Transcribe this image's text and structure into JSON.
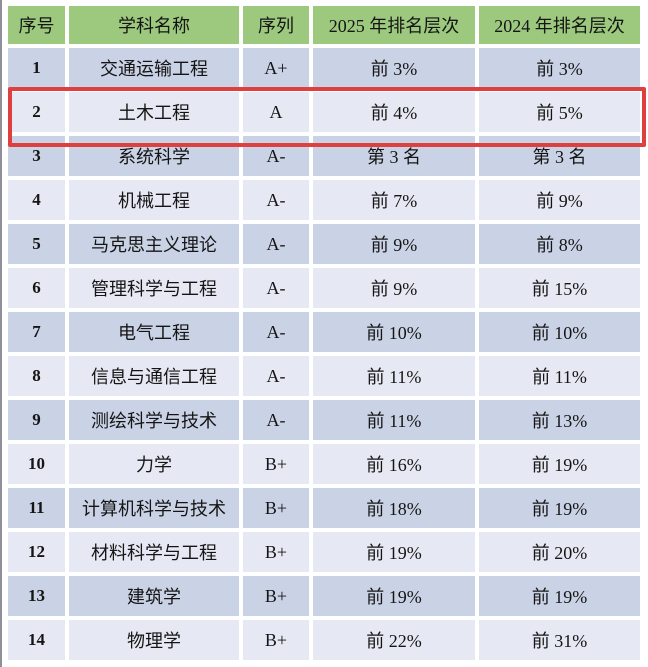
{
  "chart_data": {
    "type": "table",
    "columns": [
      "序号",
      "学科名称",
      "序列",
      "2025 年排名层次",
      "2024 年排名层次"
    ],
    "rows": [
      [
        "1",
        "交通运输工程",
        "A+",
        "前 3%",
        "前 3%"
      ],
      [
        "2",
        "土木工程",
        "A",
        "前 4%",
        "前 5%"
      ],
      [
        "3",
        "系统科学",
        "A-",
        "第 3 名",
        "第 3 名"
      ],
      [
        "4",
        "机械工程",
        "A-",
        "前 7%",
        "前 9%"
      ],
      [
        "5",
        "马克思主义理论",
        "A-",
        "前 9%",
        "前 8%"
      ],
      [
        "6",
        "管理科学与工程",
        "A-",
        "前 9%",
        "前 15%"
      ],
      [
        "7",
        "电气工程",
        "A-",
        "前 10%",
        "前 10%"
      ],
      [
        "8",
        "信息与通信工程",
        "A-",
        "前 11%",
        "前 11%"
      ],
      [
        "9",
        "测绘科学与技术",
        "A-",
        "前 11%",
        "前 13%"
      ],
      [
        "10",
        "力学",
        "B+",
        "前 16%",
        "前 19%"
      ],
      [
        "11",
        "计算机科学与技术",
        "B+",
        "前 18%",
        "前 19%"
      ],
      [
        "12",
        "材料科学与工程",
        "B+",
        "前 19%",
        "前 20%"
      ],
      [
        "13",
        "建筑学",
        "B+",
        "前 19%",
        "前 19%"
      ],
      [
        "14",
        "物理学",
        "B+",
        "前 22%",
        "前 31%"
      ]
    ],
    "highlighted_row": "2",
    "highlighted_row_values": [
      "2",
      "土木工程",
      "A",
      "前 4%",
      "前 5%"
    ],
    "layout_hints": {
      "striping": "odd rows dark, even rows light",
      "grid": "white gaps between cells"
    }
  },
  "colors": {
    "header_bg": "#9dc97f",
    "row_dark": "#cad2e6",
    "row_light": "#e6e9f3",
    "text": "#151515",
    "highlight_border": "#de4040",
    "page_bg": "#ffffff"
  }
}
